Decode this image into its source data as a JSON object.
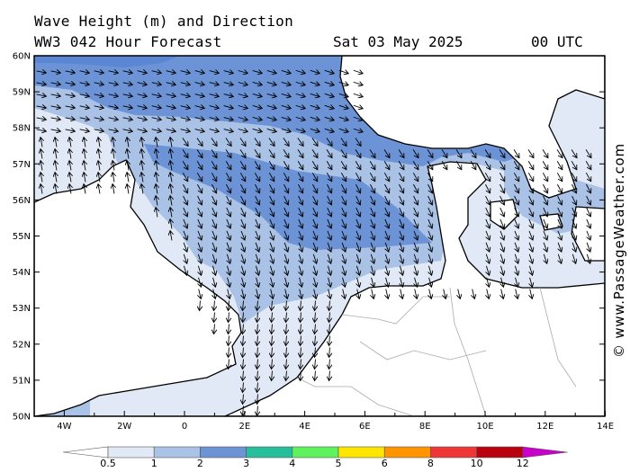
{
  "header": {
    "line1": "Wave Height (m) and Direction",
    "line2": "WW3 042 Hour Forecast",
    "date": "Sat 03 May 2025",
    "time": "00 UTC"
  },
  "credit": "© www.PassageWeather.com",
  "lat_labels": [
    "60N",
    "59N",
    "58N",
    "57N",
    "56N",
    "55N",
    "54N",
    "53N",
    "52N",
    "51N",
    "50N"
  ],
  "lon_labels": [
    "4W",
    "2W",
    "0",
    "2E",
    "4E",
    "6E",
    "8E",
    "10E",
    "12E",
    "14E"
  ],
  "legend": {
    "labels": [
      "0.5",
      "1",
      "2",
      "3",
      "4",
      "5",
      "6",
      "8",
      "10",
      "12"
    ],
    "colors": [
      "#ffffff",
      "#e1e9f6",
      "#a9c2e6",
      "#6c93d6",
      "#27bf9b",
      "#5ef25e",
      "#ffe600",
      "#ff9400",
      "#ee3636",
      "#b9000e",
      "#c900c9"
    ]
  },
  "colors": {
    "band_05_1": "#e1e9f6",
    "band_1_2": "#a9c2e6",
    "band_2_3": "#6c93d6",
    "land_border": "#000000",
    "country_border": "#aaaaaa"
  }
}
